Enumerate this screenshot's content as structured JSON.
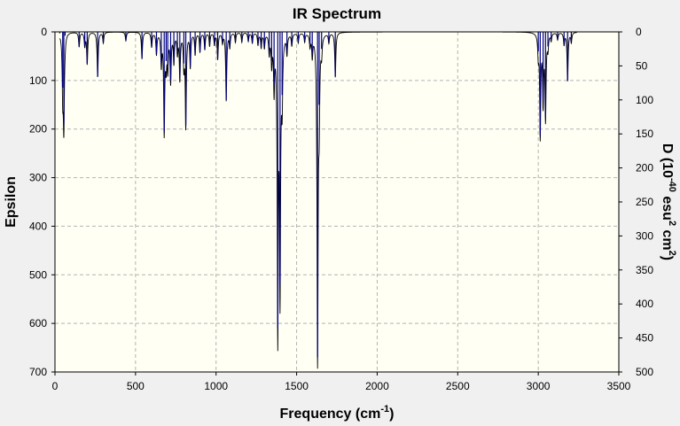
{
  "chart_data": {
    "type": "line",
    "title": "IR Spectrum",
    "xlabel": "Frequency (cm",
    "xlabel_sup": "-1",
    "xlabel_tail": ")",
    "ylabel": "Epsilon",
    "y2label_parts": [
      "D (10",
      "-40",
      " esu",
      "2",
      " cm",
      "2",
      ")"
    ],
    "xlim": [
      0,
      3500
    ],
    "ylim": [
      0,
      700
    ],
    "y2lim": [
      0,
      500
    ],
    "x_ticks": [
      0,
      500,
      1000,
      1500,
      2000,
      2500,
      3000,
      3500
    ],
    "y_ticks": [
      0,
      100,
      200,
      300,
      400,
      500,
      600,
      700
    ],
    "y2_ticks": [
      0,
      50,
      100,
      150,
      200,
      250,
      300,
      350,
      400,
      450,
      500
    ],
    "y_inverted": true,
    "grid": true,
    "plot_background": "#fffff4",
    "line_color": "#000000",
    "stick_color": "#00008b",
    "series": [
      {
        "kind": "spectrum",
        "x": [
          30,
          48,
          55,
          63,
          150,
          185,
          200,
          265,
          300,
          440,
          540,
          600,
          630,
          660,
          678,
          690,
          700,
          718,
          738,
          760,
          775,
          800,
          812,
          840,
          870,
          900,
          930,
          960,
          990,
          1010,
          1040,
          1063,
          1085,
          1120,
          1160,
          1200,
          1225,
          1260,
          1280,
          1300,
          1330,
          1345,
          1360,
          1383,
          1397,
          1410,
          1440,
          1470,
          1510,
          1550,
          1583,
          1597,
          1630,
          1640,
          1655,
          1700,
          1740,
          3000,
          3012,
          3030,
          3045,
          3060,
          3080,
          3120,
          3160,
          3182,
          3205
        ],
        "y": [
          3,
          115,
          188,
          8,
          30,
          28,
          65,
          92,
          22,
          18,
          55,
          30,
          45,
          65,
          205,
          60,
          70,
          100,
          60,
          40,
          95,
          65,
          192,
          70,
          45,
          40,
          35,
          28,
          25,
          55,
          20,
          140,
          30,
          20,
          20,
          18,
          22,
          25,
          30,
          30,
          40,
          60,
          110,
          610,
          520,
          130,
          40,
          25,
          20,
          18,
          25,
          45,
          670,
          150,
          35,
          20,
          92,
          40,
          212,
          140,
          175,
          30,
          15,
          15,
          25,
          100,
          20
        ]
      }
    ]
  }
}
